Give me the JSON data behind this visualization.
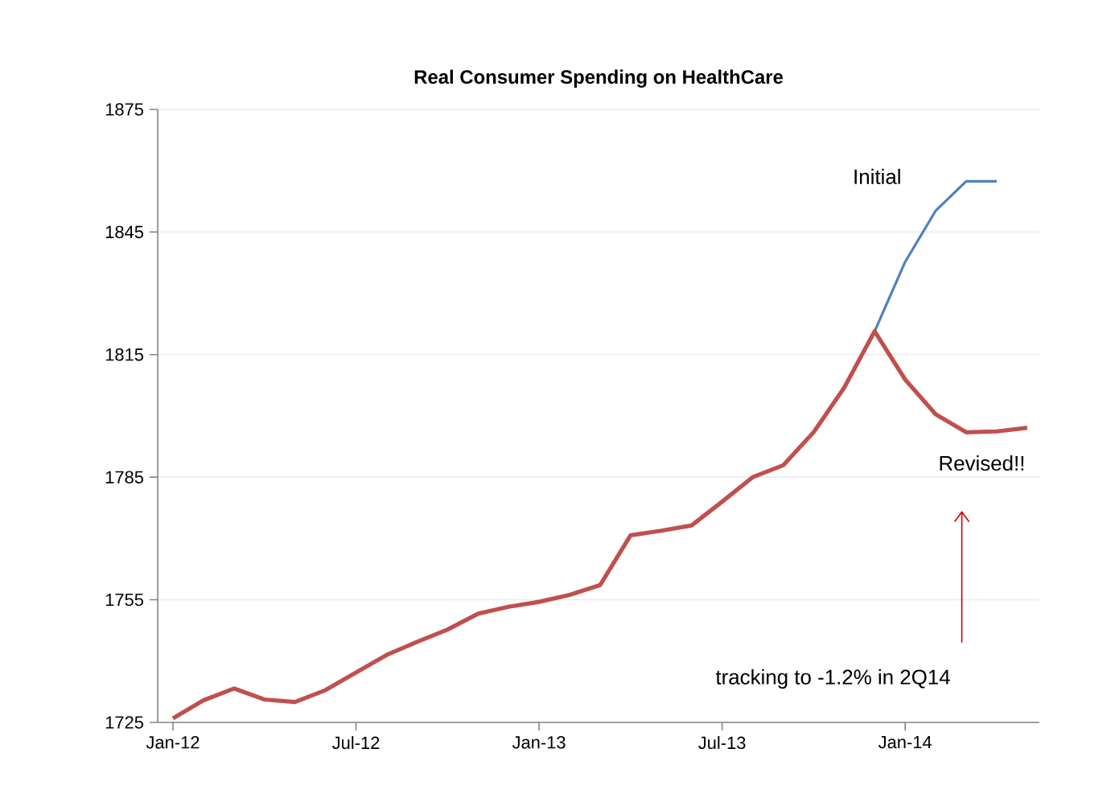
{
  "chart_data": {
    "type": "line",
    "title": "Real Consumer Spending on HealthCare",
    "xlim": [
      "2011-12-16",
      "2014-05-13"
    ],
    "xticks": [
      {
        "value": "2012-01",
        "label": "Jan-12"
      },
      {
        "value": "2012-07",
        "label": "Jul-12"
      },
      {
        "value": "2013-01",
        "label": "Jan-13"
      },
      {
        "value": "2013-07",
        "label": "Jul-13"
      },
      {
        "value": "2014-01",
        "label": "Jan-14"
      }
    ],
    "ylim": [
      1725,
      1875
    ],
    "yticks": [
      1725,
      1755,
      1785,
      1815,
      1845,
      1875
    ],
    "grid": "y",
    "marker": "none",
    "line_style": "solid",
    "series": [
      {
        "name": "Initial",
        "color": "#4f81bd",
        "x": [
          "2013-12",
          "2014-01",
          "2014-02",
          "2014-03",
          "2014-04"
        ],
        "values": [
          1820.7,
          1837.7,
          1850.2,
          1857.4,
          1857.4
        ]
      },
      {
        "name": "Revised!!",
        "color": "#c0504d",
        "x": [
          "2012-01",
          "2012-02",
          "2012-03",
          "2012-04",
          "2012-05",
          "2012-06",
          "2012-07",
          "2012-08",
          "2012-09",
          "2012-10",
          "2012-11",
          "2012-12",
          "2013-01",
          "2013-02",
          "2013-03",
          "2013-04",
          "2013-05",
          "2013-06",
          "2013-07",
          "2013-08",
          "2013-09",
          "2013-10",
          "2013-11",
          "2013-12",
          "2014-01",
          "2014-02",
          "2014-03",
          "2014-04",
          "2014-05"
        ],
        "values": [
          1726.0,
          1730.4,
          1733.3,
          1730.6,
          1730.0,
          1732.9,
          1737.2,
          1741.5,
          1744.7,
          1747.7,
          1751.6,
          1753.3,
          1754.5,
          1756.2,
          1758.6,
          1770.8,
          1771.9,
          1773.2,
          1779.0,
          1785.0,
          1787.9,
          1796.0,
          1806.9,
          1820.7,
          1808.9,
          1800.4,
          1796.0,
          1796.2,
          1797.1
        ]
      }
    ],
    "annotations": [
      "tracking to -1.2% in 2Q14"
    ]
  }
}
